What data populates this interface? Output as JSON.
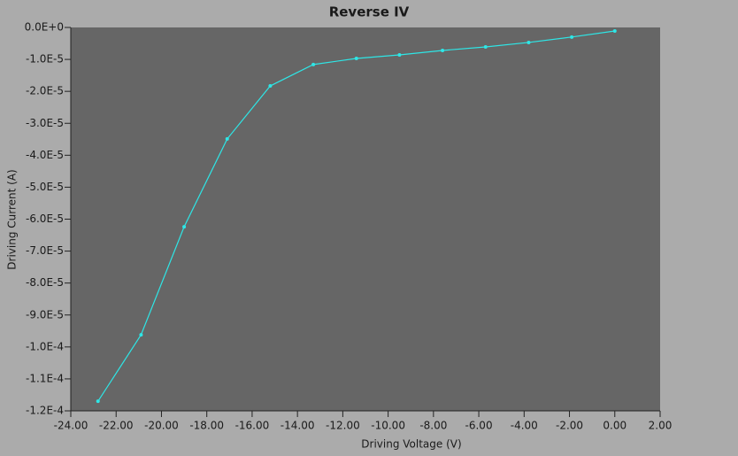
{
  "chart_data": {
    "type": "line",
    "title": "Reverse IV",
    "x_label": "Driving Voltage (V)",
    "y_label": "Driving Current (A)",
    "x": [
      -22.8,
      -20.9,
      -19.0,
      -17.1,
      -15.2,
      -13.3,
      -11.4,
      -9.5,
      -7.6,
      -5.7,
      -3.8,
      -1.9,
      0.0
    ],
    "series": [
      {
        "name": "Reverse IV",
        "color": "#2ee6e6",
        "values": [
          -0.000117,
          -9.62e-05,
          -6.24e-05,
          -3.49e-05,
          -1.83e-05,
          -1.16e-05,
          -9.7e-06,
          -8.6e-06,
          -7.2e-06,
          -6.1e-06,
          -4.7e-06,
          -3e-06,
          -1.1e-06
        ]
      }
    ],
    "xlim": [
      -24,
      2
    ],
    "ylim": [
      -0.00012,
      0
    ],
    "xticks": [
      {
        "value": -24,
        "label": "-24.00"
      },
      {
        "value": -22,
        "label": "-22.00"
      },
      {
        "value": -20,
        "label": "-20.00"
      },
      {
        "value": -18,
        "label": "-18.00"
      },
      {
        "value": -16,
        "label": "-16.00"
      },
      {
        "value": -14,
        "label": "-14.00"
      },
      {
        "value": -12,
        "label": "-12.00"
      },
      {
        "value": -10,
        "label": "-10.00"
      },
      {
        "value": -8,
        "label": "-8.00"
      },
      {
        "value": -6,
        "label": "-6.00"
      },
      {
        "value": -4,
        "label": "-4.00"
      },
      {
        "value": -2,
        "label": "-2.00"
      },
      {
        "value": 0,
        "label": "0.00"
      },
      {
        "value": 2,
        "label": "2.00"
      }
    ],
    "yticks": [
      {
        "value": 0,
        "label": "0.0E+0"
      },
      {
        "value": -1e-05,
        "label": "-1.0E-5"
      },
      {
        "value": -2e-05,
        "label": "-2.0E-5"
      },
      {
        "value": -3e-05,
        "label": "-3.0E-5"
      },
      {
        "value": -4e-05,
        "label": "-4.0E-5"
      },
      {
        "value": -5e-05,
        "label": "-5.0E-5"
      },
      {
        "value": -6e-05,
        "label": "-6.0E-5"
      },
      {
        "value": -7e-05,
        "label": "-7.0E-5"
      },
      {
        "value": -8e-05,
        "label": "-8.0E-5"
      },
      {
        "value": -9e-05,
        "label": "-9.0E-5"
      },
      {
        "value": -0.0001,
        "label": "-1.0E-4"
      },
      {
        "value": -0.00011,
        "label": "-1.1E-4"
      },
      {
        "value": -0.00012,
        "label": "-1.2E-4"
      }
    ],
    "plot_background": "#666666",
    "grid": false
  }
}
